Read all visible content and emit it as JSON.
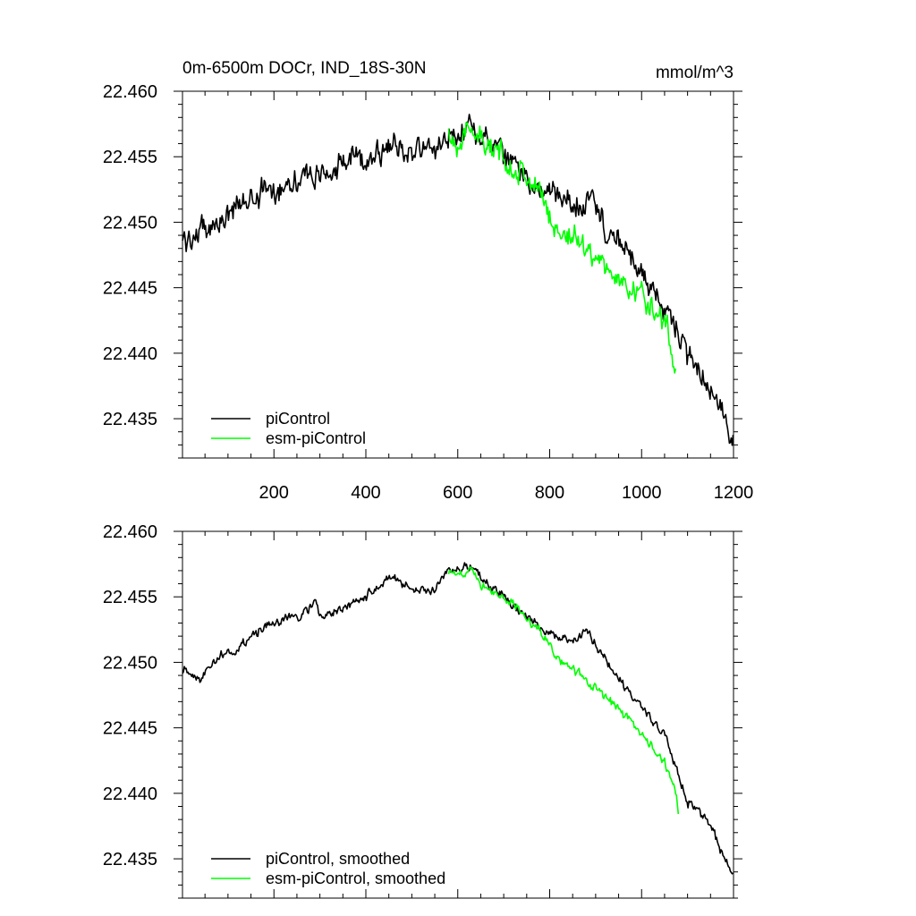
{
  "chart_data": [
    {
      "type": "line",
      "title": "0m-6500m DOCr, IND_18S-30N",
      "units": "mmol/m^3",
      "xlabel": "",
      "ylabel": "",
      "xlim": [
        1,
        1200
      ],
      "ylim": [
        22.432,
        22.46
      ],
      "x_ticks": [
        200,
        400,
        600,
        800,
        1000,
        1200
      ],
      "y_ticks": [
        "22.460",
        "22.455",
        "22.450",
        "22.445",
        "22.440",
        "22.435"
      ],
      "legend_position": "bottom-left",
      "noise": 0.0011,
      "series": [
        {
          "name": "piControl",
          "color": "#000000",
          "anchors_x": [
            1,
            50,
            100,
            150,
            200,
            250,
            300,
            350,
            400,
            450,
            500,
            550,
            580,
            600,
            630,
            650,
            700,
            750,
            800,
            850,
            900,
            920,
            950,
            1000,
            1050,
            1080,
            1100,
            1150,
            1200
          ],
          "anchors_y": [
            22.4485,
            22.4495,
            22.4505,
            22.452,
            22.4525,
            22.4535,
            22.4535,
            22.4545,
            22.455,
            22.4557,
            22.4555,
            22.4555,
            22.4568,
            22.4568,
            22.4575,
            22.4565,
            22.455,
            22.4535,
            22.452,
            22.4515,
            22.4515,
            22.4495,
            22.4485,
            22.446,
            22.4435,
            22.4415,
            22.4395,
            22.4375,
            22.433
          ]
        },
        {
          "name": "esm-piControl",
          "color": "#00ff00",
          "anchors_x": [
            580,
            600,
            620,
            640,
            660,
            700,
            750,
            790,
            810,
            850,
            900,
            950,
            1000,
            1030,
            1050,
            1065,
            1075
          ],
          "anchors_y": [
            22.4568,
            22.4562,
            22.4565,
            22.4575,
            22.4555,
            22.455,
            22.4535,
            22.4515,
            22.4495,
            22.449,
            22.4475,
            22.4455,
            22.4445,
            22.443,
            22.4425,
            22.441,
            22.4385
          ]
        }
      ]
    },
    {
      "type": "line",
      "title": "",
      "xlabel": "",
      "ylabel": "",
      "xlim": [
        1,
        1200
      ],
      "ylim": [
        22.432,
        22.46
      ],
      "y_ticks": [
        "22.460",
        "22.455",
        "22.450",
        "22.445",
        "22.440",
        "22.435"
      ],
      "legend_position": "bottom-left",
      "noise": 0.0004,
      "series": [
        {
          "name": "piControl, smoothed",
          "color": "#000000",
          "anchors_x": [
            1,
            40,
            80,
            120,
            150,
            200,
            250,
            290,
            300,
            350,
            400,
            450,
            500,
            550,
            580,
            600,
            630,
            650,
            700,
            750,
            800,
            820,
            850,
            880,
            900,
            950,
            1000,
            1050,
            1100,
            1150,
            1200
          ],
          "anchors_y": [
            22.4495,
            22.4488,
            22.4505,
            22.451,
            22.452,
            22.453,
            22.4535,
            22.4545,
            22.4535,
            22.454,
            22.455,
            22.4565,
            22.4555,
            22.4555,
            22.457,
            22.457,
            22.4575,
            22.4565,
            22.455,
            22.4535,
            22.452,
            22.452,
            22.4515,
            22.4525,
            22.4515,
            22.4485,
            22.4465,
            22.4445,
            22.4395,
            22.4375,
            22.4335
          ]
        },
        {
          "name": "esm-piControl, smoothed",
          "color": "#00ff00",
          "anchors_x": [
            580,
            600,
            630,
            650,
            700,
            750,
            790,
            810,
            850,
            900,
            950,
            1000,
            1030,
            1050,
            1070,
            1080
          ],
          "anchors_y": [
            22.457,
            22.4565,
            22.4575,
            22.456,
            22.455,
            22.4535,
            22.452,
            22.4505,
            22.4495,
            22.448,
            22.4465,
            22.4445,
            22.443,
            22.4425,
            22.4405,
            22.4385
          ]
        }
      ]
    }
  ]
}
